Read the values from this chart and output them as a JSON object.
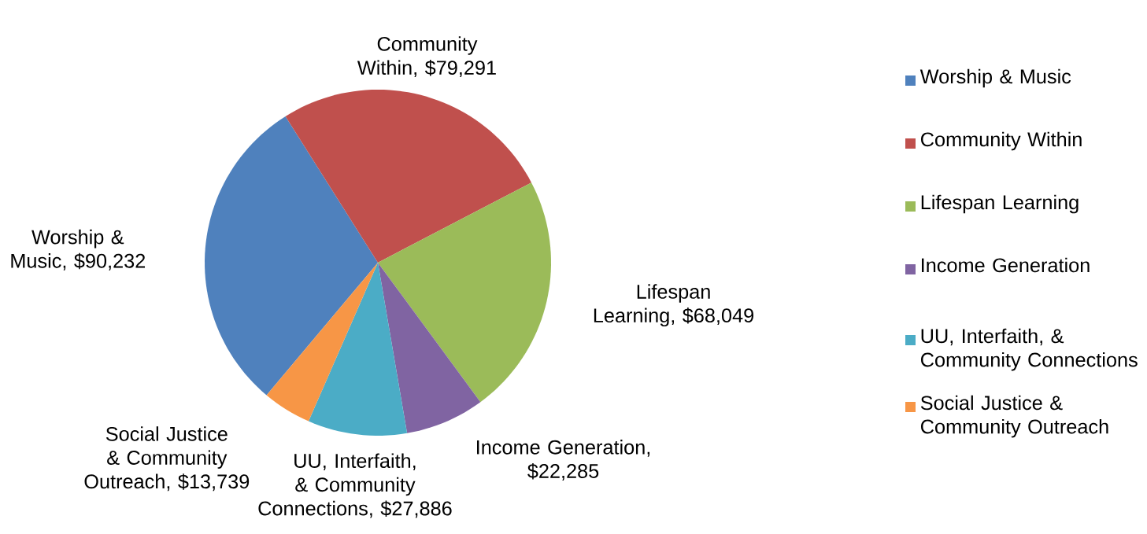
{
  "chart_data": {
    "type": "pie",
    "categories": [
      "Worship & Music",
      "Community Within",
      "Lifespan Learning",
      "Income Generation",
      "UU, Interfaith, & Community Connections",
      "Social Justice & Community Outreach"
    ],
    "values": [
      90232,
      79291,
      68049,
      22285,
      27886,
      13739
    ],
    "value_labels": [
      "Worship & Music, $90,232",
      "Community Within, $79,291",
      "Lifespan Learning, $68,049",
      "Income Generation, $22,285",
      "UU, Interfaith, & Community Connections, $27,886",
      "Social Justice & Community Outreach, $13,739"
    ],
    "colors": [
      "#4f81bd",
      "#c0504d",
      "#9bbb59",
      "#8064a2",
      "#4bacc6",
      "#f79646"
    ],
    "legend": "right"
  }
}
